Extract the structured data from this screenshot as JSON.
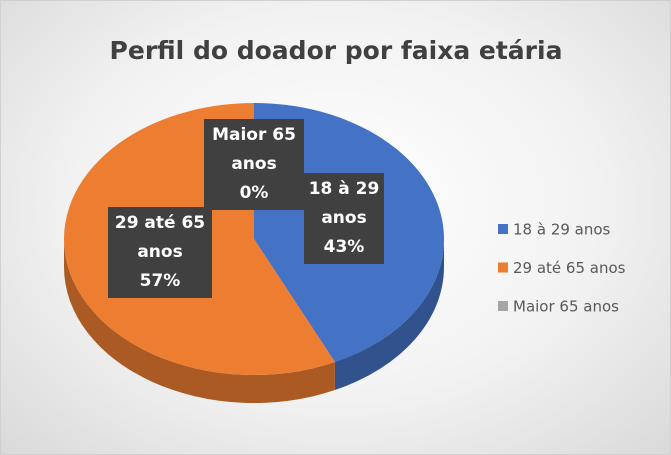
{
  "chart_data": {
    "type": "pie",
    "title": "Perfil do doador por faixa etária",
    "categories": [
      "18 à 29 anos",
      "29 até 65 anos",
      "Maior 65 anos"
    ],
    "values": [
      43,
      57,
      0
    ],
    "value_labels": [
      "43%",
      "57%",
      "0%"
    ],
    "colors": [
      "#4472c4",
      "#ed7d31",
      "#a5a5a5"
    ],
    "legend": "right"
  }
}
